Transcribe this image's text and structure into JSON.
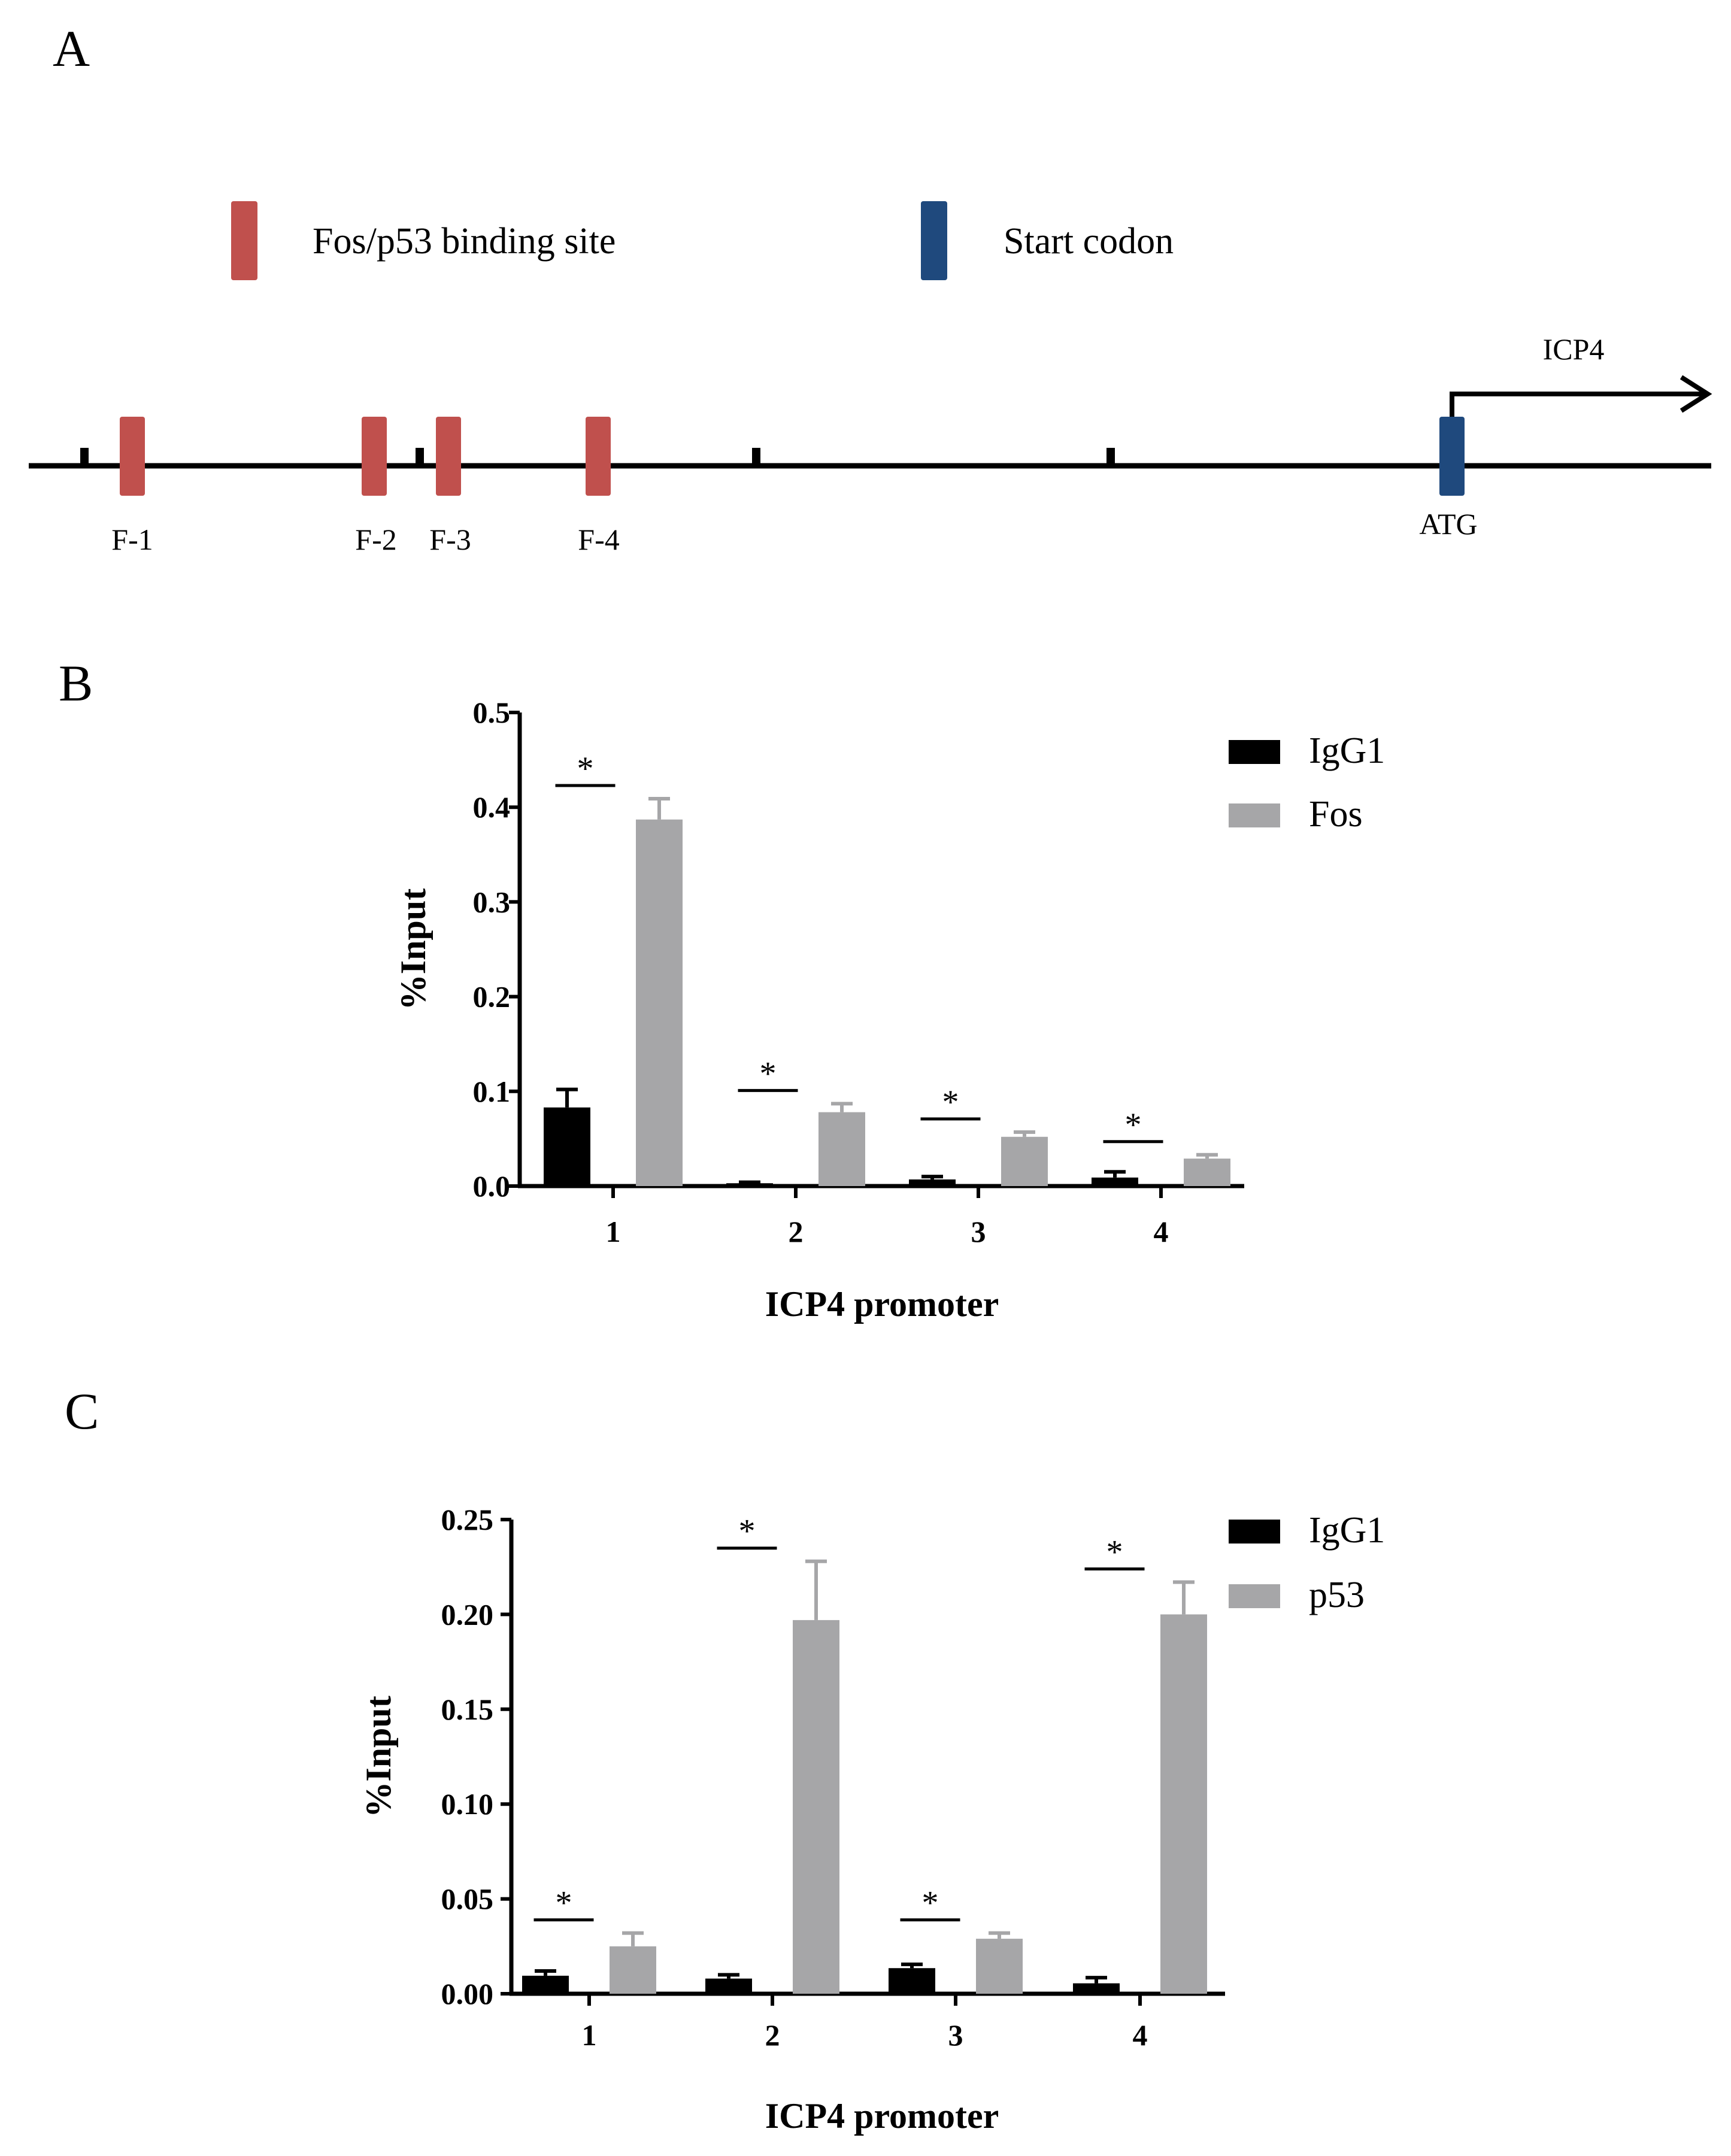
{
  "panel_a": {
    "letter": "A",
    "legend": [
      {
        "label": "Fos/p53 binding site",
        "color": "#c0504d"
      },
      {
        "label": "Start codon",
        "color": "#1f497d"
      }
    ],
    "sites": [
      "F-1",
      "F-2",
      "F-3",
      "F-4"
    ],
    "start_label": "ATG",
    "gene_label": "ICP4"
  },
  "chart_data": [
    {
      "panel": "B",
      "type": "bar",
      "categories": [
        "1",
        "2",
        "3",
        "4"
      ],
      "series": [
        {
          "name": "IgG1",
          "color": "#000000",
          "values": [
            0.083,
            0.003,
            0.007,
            0.009
          ],
          "errors": [
            0.019,
            0.001,
            0.003,
            0.006
          ]
        },
        {
          "name": "Fos",
          "color": "#a6a6a8",
          "values": [
            0.387,
            0.078,
            0.052,
            0.029
          ],
          "errors": [
            0.022,
            0.009,
            0.005,
            0.004
          ]
        }
      ],
      "significance": [
        "*",
        "*",
        "*",
        "*"
      ],
      "xlabel": "ICP4 promoter",
      "ylabel": "%Input",
      "ylim": [
        0,
        0.5
      ],
      "yticks": [
        "0.0",
        "0.1",
        "0.2",
        "0.3",
        "0.4",
        "0.5"
      ]
    },
    {
      "panel": "C",
      "type": "bar",
      "categories": [
        "1",
        "2",
        "3",
        "4"
      ],
      "series": [
        {
          "name": "IgG1",
          "color": "#000000",
          "values": [
            0.0095,
            0.008,
            0.0135,
            0.0055
          ],
          "errors": [
            0.0025,
            0.002,
            0.002,
            0.003
          ]
        },
        {
          "name": "p53",
          "color": "#a6a6a8",
          "values": [
            0.025,
            0.197,
            0.029,
            0.2
          ],
          "errors": [
            0.007,
            0.031,
            0.003,
            0.017
          ]
        }
      ],
      "significance": [
        "*",
        "*",
        "*",
        "*"
      ],
      "xlabel": "ICP4 promoter",
      "ylabel": "%Input",
      "ylim": [
        0,
        0.25
      ],
      "yticks": [
        "0.00",
        "0.05",
        "0.10",
        "0.15",
        "0.20",
        "0.25"
      ]
    }
  ]
}
